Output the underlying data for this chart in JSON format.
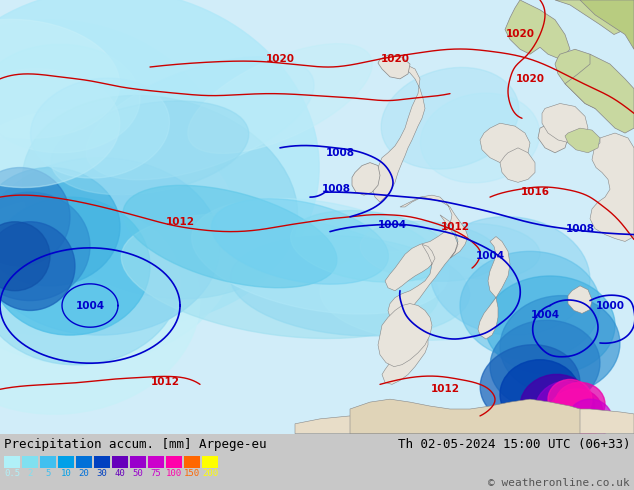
{
  "title_left": "Precipitation accum. [mm] Arpege-eu",
  "title_right": "Th 02-05-2024 15:00 UTC (06+33)",
  "copyright": "© weatheronline.co.uk",
  "legend_values": [
    "0.5",
    "2",
    "5",
    "10",
    "20",
    "30",
    "40",
    "50",
    "75",
    "100",
    "150",
    "200"
  ],
  "legend_colors": [
    "#b0f0f8",
    "#80e0f0",
    "#40c0f0",
    "#00a0e8",
    "#0070d8",
    "#0040c0",
    "#6600bb",
    "#9900cc",
    "#cc00cc",
    "#ff00aa",
    "#ff6600",
    "#ffff00"
  ],
  "bg_color": "#c8c8c8",
  "bottom_bar_color": "#ffffff",
  "bottom_text_color": "#000000",
  "font_size_title": 9,
  "font_size_copyright": 8,
  "pressure_color_blue": "#0000cc",
  "pressure_color_red": "#cc0000",
  "ocean_color": "#d0eef8",
  "land_color": "#e8e4dc",
  "land_color_green": "#c8d8a0",
  "land_color_green2": "#b8cc80",
  "sea_light": "#c0e8f8",
  "precip_lightest": "#c8f0f8",
  "precip_light": "#80d8f0",
  "precip_medium": "#40b8e8",
  "precip_dark": "#2080d0",
  "precip_darker": "#1050b0",
  "precip_purple": "#8800cc",
  "precip_magenta": "#cc00aa"
}
